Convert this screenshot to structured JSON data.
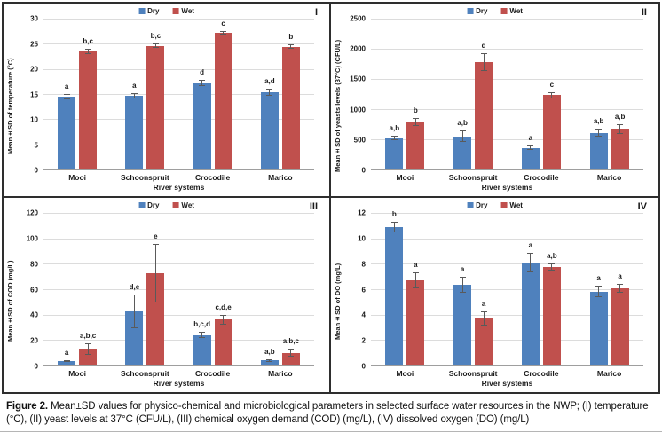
{
  "figure": {
    "caption_label": "Figure 2.",
    "caption_text": "Mean±SD values for physico-chemical and microbiological parameters in selected surface water resources in the NWP; (I) temperature (°C), (II) yeast levels at 37°C (CFU/L), (III) chemical oxygen demand (COD) (mg/L), (IV) dissolved oxygen (DO) (mg/L)"
  },
  "colors": {
    "dry": "#4F81BD",
    "wet": "#C0504D",
    "gridline": "#DCDCDC",
    "axis": "#9E9E9E",
    "border": "#2E2E2E"
  },
  "legend": {
    "items": [
      {
        "name": "Dry",
        "color": "#4F81BD"
      },
      {
        "name": "Wet",
        "color": "#C0504D"
      }
    ]
  },
  "chart_data": [
    {
      "type": "bar",
      "panel": "I",
      "ylabel": "Mean±SD of temperature (°C)",
      "xlabel": "River systems",
      "categories": [
        "Mooi",
        "Schoonspruit",
        "Crocodile",
        "Marico"
      ],
      "ylim": [
        0,
        30
      ],
      "yticks": [
        0,
        5,
        10,
        15,
        20,
        25,
        30
      ],
      "grid": true,
      "legend_position": "top-center",
      "series": [
        {
          "name": "Dry",
          "color": "#4F81BD",
          "values": [
            14.5,
            14.6,
            17.2,
            15.4
          ],
          "errors": [
            0.5,
            0.5,
            0.6,
            0.7
          ],
          "labels": [
            "a",
            "a",
            "d",
            "a,d"
          ]
        },
        {
          "name": "Wet",
          "color": "#C0504D",
          "values": [
            23.5,
            24.6,
            27.2,
            24.4
          ],
          "errors": [
            0.5,
            0.4,
            0.3,
            0.4
          ],
          "labels": [
            "b,c",
            "b,c",
            "c",
            "b"
          ]
        }
      ]
    },
    {
      "type": "bar",
      "panel": "II",
      "ylabel": "Mean±SD of yeasts levels (37°C) (CFU/L)",
      "xlabel": "River systems",
      "categories": [
        "Mooi",
        "Schoonspruit",
        "Crocodile",
        "Marico"
      ],
      "ylim": [
        0,
        2500
      ],
      "yticks": [
        0,
        500,
        1000,
        1500,
        2000,
        2500
      ],
      "grid": true,
      "legend_position": "top-center",
      "series": [
        {
          "name": "Dry",
          "color": "#4F81BD",
          "values": [
            520,
            550,
            360,
            610
          ],
          "errors": [
            40,
            100,
            40,
            70
          ],
          "labels": [
            "a,b",
            "a,b",
            "a",
            "a,b"
          ]
        },
        {
          "name": "Wet",
          "color": "#C0504D",
          "values": [
            790,
            1780,
            1230,
            670
          ],
          "errors": [
            70,
            150,
            50,
            80
          ],
          "labels": [
            "b",
            "d",
            "c",
            "a,b"
          ]
        }
      ]
    },
    {
      "type": "bar",
      "panel": "III",
      "ylabel": "Mean±SD of COD (mg/L)",
      "xlabel": "River systems",
      "categories": [
        "Mooi",
        "Schoonspruit",
        "Crocodile",
        "Marico"
      ],
      "ylim": [
        0,
        120
      ],
      "yticks": [
        0,
        20,
        40,
        60,
        80,
        100,
        120
      ],
      "grid": true,
      "legend_position": "top-center",
      "series": [
        {
          "name": "Dry",
          "color": "#4F81BD",
          "values": [
            3.5,
            42.5,
            24,
            4
          ],
          "errors": [
            1,
            13,
            2.5,
            1
          ],
          "labels": [
            "a",
            "d,e",
            "b,c,d",
            "a,b"
          ]
        },
        {
          "name": "Wet",
          "color": "#C0504D",
          "values": [
            13,
            72.5,
            36,
            10
          ],
          "errors": [
            4.5,
            23,
            4,
            3
          ],
          "labels": [
            "a,b,c",
            "e",
            "c,d,e",
            "a,b,c"
          ]
        }
      ]
    },
    {
      "type": "bar",
      "panel": "IV",
      "ylabel": "Mean±SD of DO (mg/L)",
      "xlabel": "River systems",
      "categories": [
        "Mooi",
        "Schoonspruit",
        "Crocodile",
        "Marico"
      ],
      "ylim": [
        0,
        12
      ],
      "yticks": [
        0,
        2,
        4,
        6,
        8,
        10,
        12
      ],
      "grid": true,
      "legend_position": "top-center",
      "series": [
        {
          "name": "Dry",
          "color": "#4F81BD",
          "values": [
            10.9,
            6.35,
            8.1,
            5.8
          ],
          "errors": [
            0.4,
            0.6,
            0.75,
            0.45
          ],
          "labels": [
            "b",
            "a",
            "a",
            "a"
          ]
        },
        {
          "name": "Wet",
          "color": "#C0504D",
          "values": [
            6.7,
            3.7,
            7.75,
            6.05
          ],
          "errors": [
            0.6,
            0.55,
            0.25,
            0.35
          ],
          "labels": [
            "a",
            "a",
            "a,b",
            "a"
          ]
        }
      ]
    }
  ]
}
